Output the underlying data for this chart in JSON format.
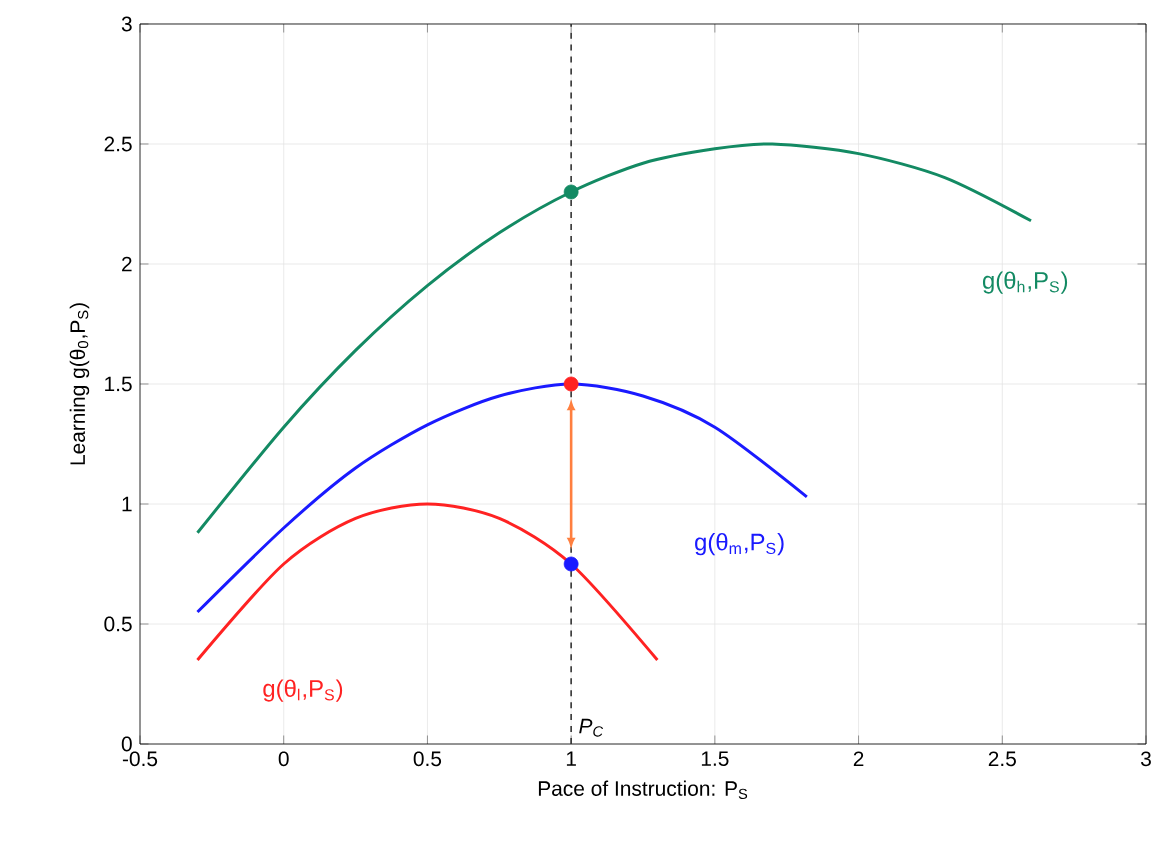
{
  "chart_data": {
    "type": "line",
    "xlabel": "Pace of Instruction: P$_{S}$",
    "ylabel": "Learning g(θ$_{0}$,P$_{S}$)",
    "xlim": [
      -0.5,
      3
    ],
    "ylim": [
      0,
      3
    ],
    "xticks": [
      -0.5,
      0,
      0.5,
      1,
      1.5,
      2,
      2.5,
      3
    ],
    "yticks": [
      0,
      0.5,
      1,
      1.5,
      2,
      2.5,
      3
    ],
    "grid": true,
    "series": [
      {
        "name": "g(θ$_{h}$,P$_{S}$)",
        "color": "#138a63",
        "x": [
          -0.3,
          0,
          0.25,
          0.5,
          0.75,
          1,
          1.25,
          1.5,
          1.7,
          2,
          2.3,
          2.6
        ],
        "values": [
          0.88,
          1.32,
          1.64,
          1.91,
          2.13,
          2.3,
          2.42,
          2.48,
          2.5,
          2.46,
          2.36,
          2.18
        ]
      },
      {
        "name": "g(θ$_{m}$,P$_{S}$)",
        "color": "#1a1aff",
        "x": [
          -0.3,
          0,
          0.25,
          0.5,
          0.75,
          1,
          1.25,
          1.5,
          1.82
        ],
        "values": [
          0.55,
          0.9,
          1.15,
          1.33,
          1.45,
          1.5,
          1.45,
          1.32,
          1.03
        ]
      },
      {
        "name": "g(θ$_{l}$,P$_{S}$)",
        "color": "#ff2222",
        "x": [
          -0.3,
          0,
          0.25,
          0.5,
          0.75,
          1,
          1.3
        ],
        "values": [
          0.35,
          0.75,
          0.94,
          1.0,
          0.94,
          0.75,
          0.35
        ]
      },
      {
        "type": "scatter",
        "marker": "circle",
        "x": [
          1,
          1,
          1
        ],
        "values": [
          2.3,
          1.5,
          0.75
        ],
        "colors": [
          "#138a63",
          "#ff2222",
          "#1a1aff"
        ]
      }
    ],
    "ref_lines": [
      {
        "axis": "x",
        "value": 1,
        "label": "P$_{C}$",
        "line_style": "dashed",
        "color": "#333333"
      }
    ]
  }
}
